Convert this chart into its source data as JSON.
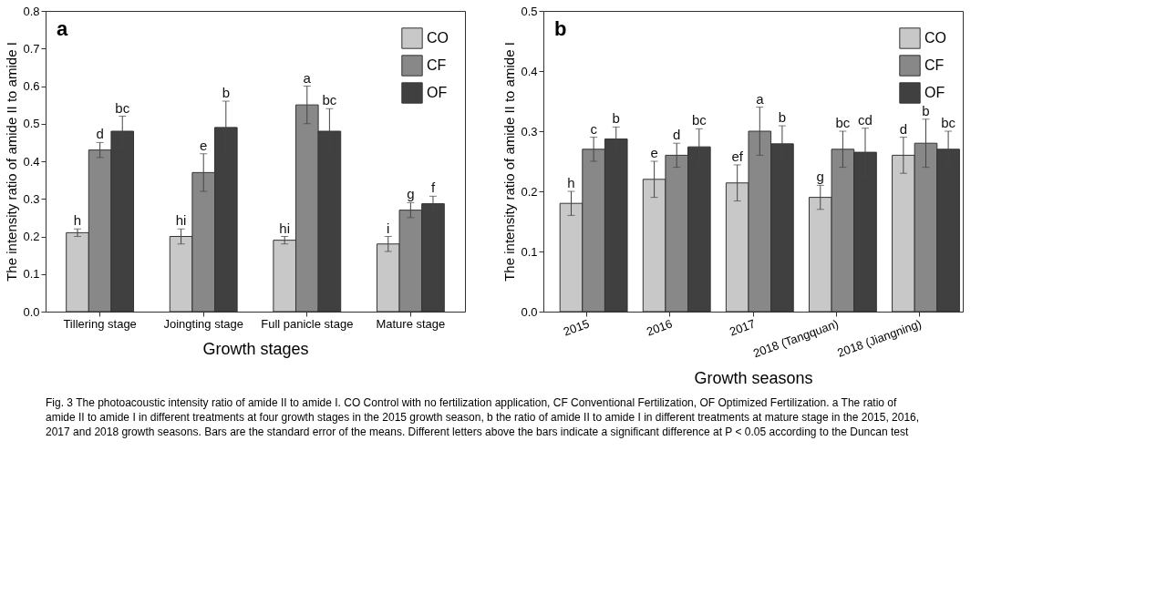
{
  "chart_data": [
    {
      "type": "bar",
      "xlabel": "Growth stages",
      "ylabel": "The intensity ratio of amide II to amide I",
      "categories": [
        "Tillering stage",
        "Joingting stage",
        "Full panicle stage",
        "Mature stage"
      ],
      "ylim": [
        0,
        0.8
      ],
      "yticks": [
        {
          "value": 0,
          "label": "0.0"
        },
        0.1,
        0.2,
        0.3,
        0.4,
        0.5,
        0.6,
        0.7,
        0.8
      ],
      "grid": false,
      "legend": "top right",
      "annotations": [
        "a"
      ],
      "series": [
        {
          "name": "CO",
          "color": "#c8c8c8",
          "values": [
            0.21,
            0.2,
            0.19,
            0.18
          ],
          "errors": [
            0.01,
            0.02,
            0.01,
            0.02
          ],
          "value_labels": [
            "h",
            "hi",
            "hi",
            "i"
          ]
        },
        {
          "name": "CF",
          "color": "#888888",
          "values": [
            0.43,
            0.37,
            0.55,
            0.27
          ],
          "errors": [
            0.02,
            0.05,
            0.05,
            0.02
          ],
          "value_labels": [
            "d",
            "e",
            "a",
            "g"
          ]
        },
        {
          "name": "OF",
          "color": "#404040",
          "values": [
            0.48,
            0.49,
            0.48,
            0.287
          ],
          "errors": [
            0.04,
            0.07,
            0.06,
            0.02
          ],
          "value_labels": [
            "bc",
            "b",
            "bc",
            "f"
          ]
        }
      ]
    },
    {
      "type": "bar",
      "xlabel": "Growth seasons",
      "ylabel": "The intensity ratio of amide II to amide I",
      "categories": [
        "2015",
        "2016",
        "2017",
        "2018 (Tangquan)",
        "2018 (Jiangning)"
      ],
      "ylim": [
        0,
        0.5
      ],
      "yticks": [
        {
          "value": 0,
          "label": "0.0"
        },
        0.1,
        0.2,
        0.3,
        0.4,
        0.5
      ],
      "grid": false,
      "legend": "top right",
      "annotations": [
        "b",
        "Fig. 3  The photoacoustic intensity ratio of amide II to amide I. CO Control with no fertilization application, CF Conventional Fertilization, OF Optimized Fertilization. a The ratio of amide II to amide I in different treatments at four growth stages in the 2015 growth season, b the ratio of amide II to amide I in different treatments at mature stage in the 2015, 2016, 2017 and 2018 growth seasons. Bars are the standard error of the means. Different letters above the bars indicate a significant difference at P < 0.05 according to the Duncan test"
      ],
      "series": [
        {
          "name": "CO",
          "color": "#c8c8c8",
          "values": [
            0.18,
            0.22,
            0.214,
            0.19,
            0.26
          ],
          "errors": [
            0.02,
            0.03,
            0.03,
            0.02,
            0.03
          ],
          "value_labels": [
            "h",
            "e",
            "ef",
            "g",
            "d"
          ]
        },
        {
          "name": "CF",
          "color": "#888888",
          "values": [
            0.27,
            0.26,
            0.3,
            0.27,
            0.28
          ],
          "errors": [
            0.02,
            0.02,
            0.04,
            0.03,
            0.04
          ],
          "value_labels": [
            "c",
            "d",
            "a",
            "bc",
            "b"
          ]
        },
        {
          "name": "OF",
          "color": "#404040",
          "values": [
            0.287,
            0.274,
            0.279,
            0.265,
            0.27
          ],
          "errors": [
            0.02,
            0.03,
            0.03,
            0.04,
            0.03
          ],
          "value_labels": [
            "b",
            "bc",
            "b",
            "cd",
            "bc"
          ]
        }
      ]
    }
  ]
}
